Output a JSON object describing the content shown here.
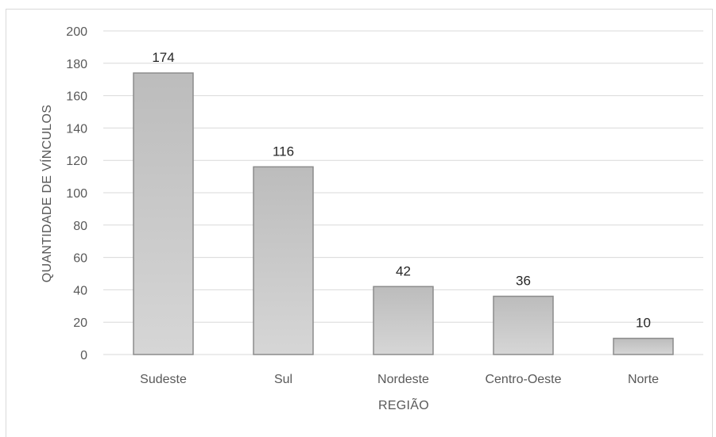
{
  "chart_data": {
    "type": "bar",
    "categories": [
      "Sudeste",
      "Sul",
      "Nordeste",
      "Centro-Oeste",
      "Norte"
    ],
    "values": [
      174,
      116,
      42,
      36,
      10
    ],
    "data_labels": [
      "174",
      "116",
      "42",
      "36",
      "10"
    ],
    "title": "",
    "xlabel": "REGIÃO",
    "ylabel": "QUANTIDADE DE VÍNCULOS",
    "ylim": [
      0,
      200
    ],
    "yticks": [
      0,
      20,
      40,
      60,
      80,
      100,
      120,
      140,
      160,
      180,
      200
    ],
    "grid": true,
    "legend": "none",
    "colors": {
      "bar_top": "#bfbfbf",
      "bar_bottom": "#d9d9d9",
      "bar_edge": "#8c8c8c",
      "grid": "#d9d9d9",
      "text": "#595959"
    }
  }
}
